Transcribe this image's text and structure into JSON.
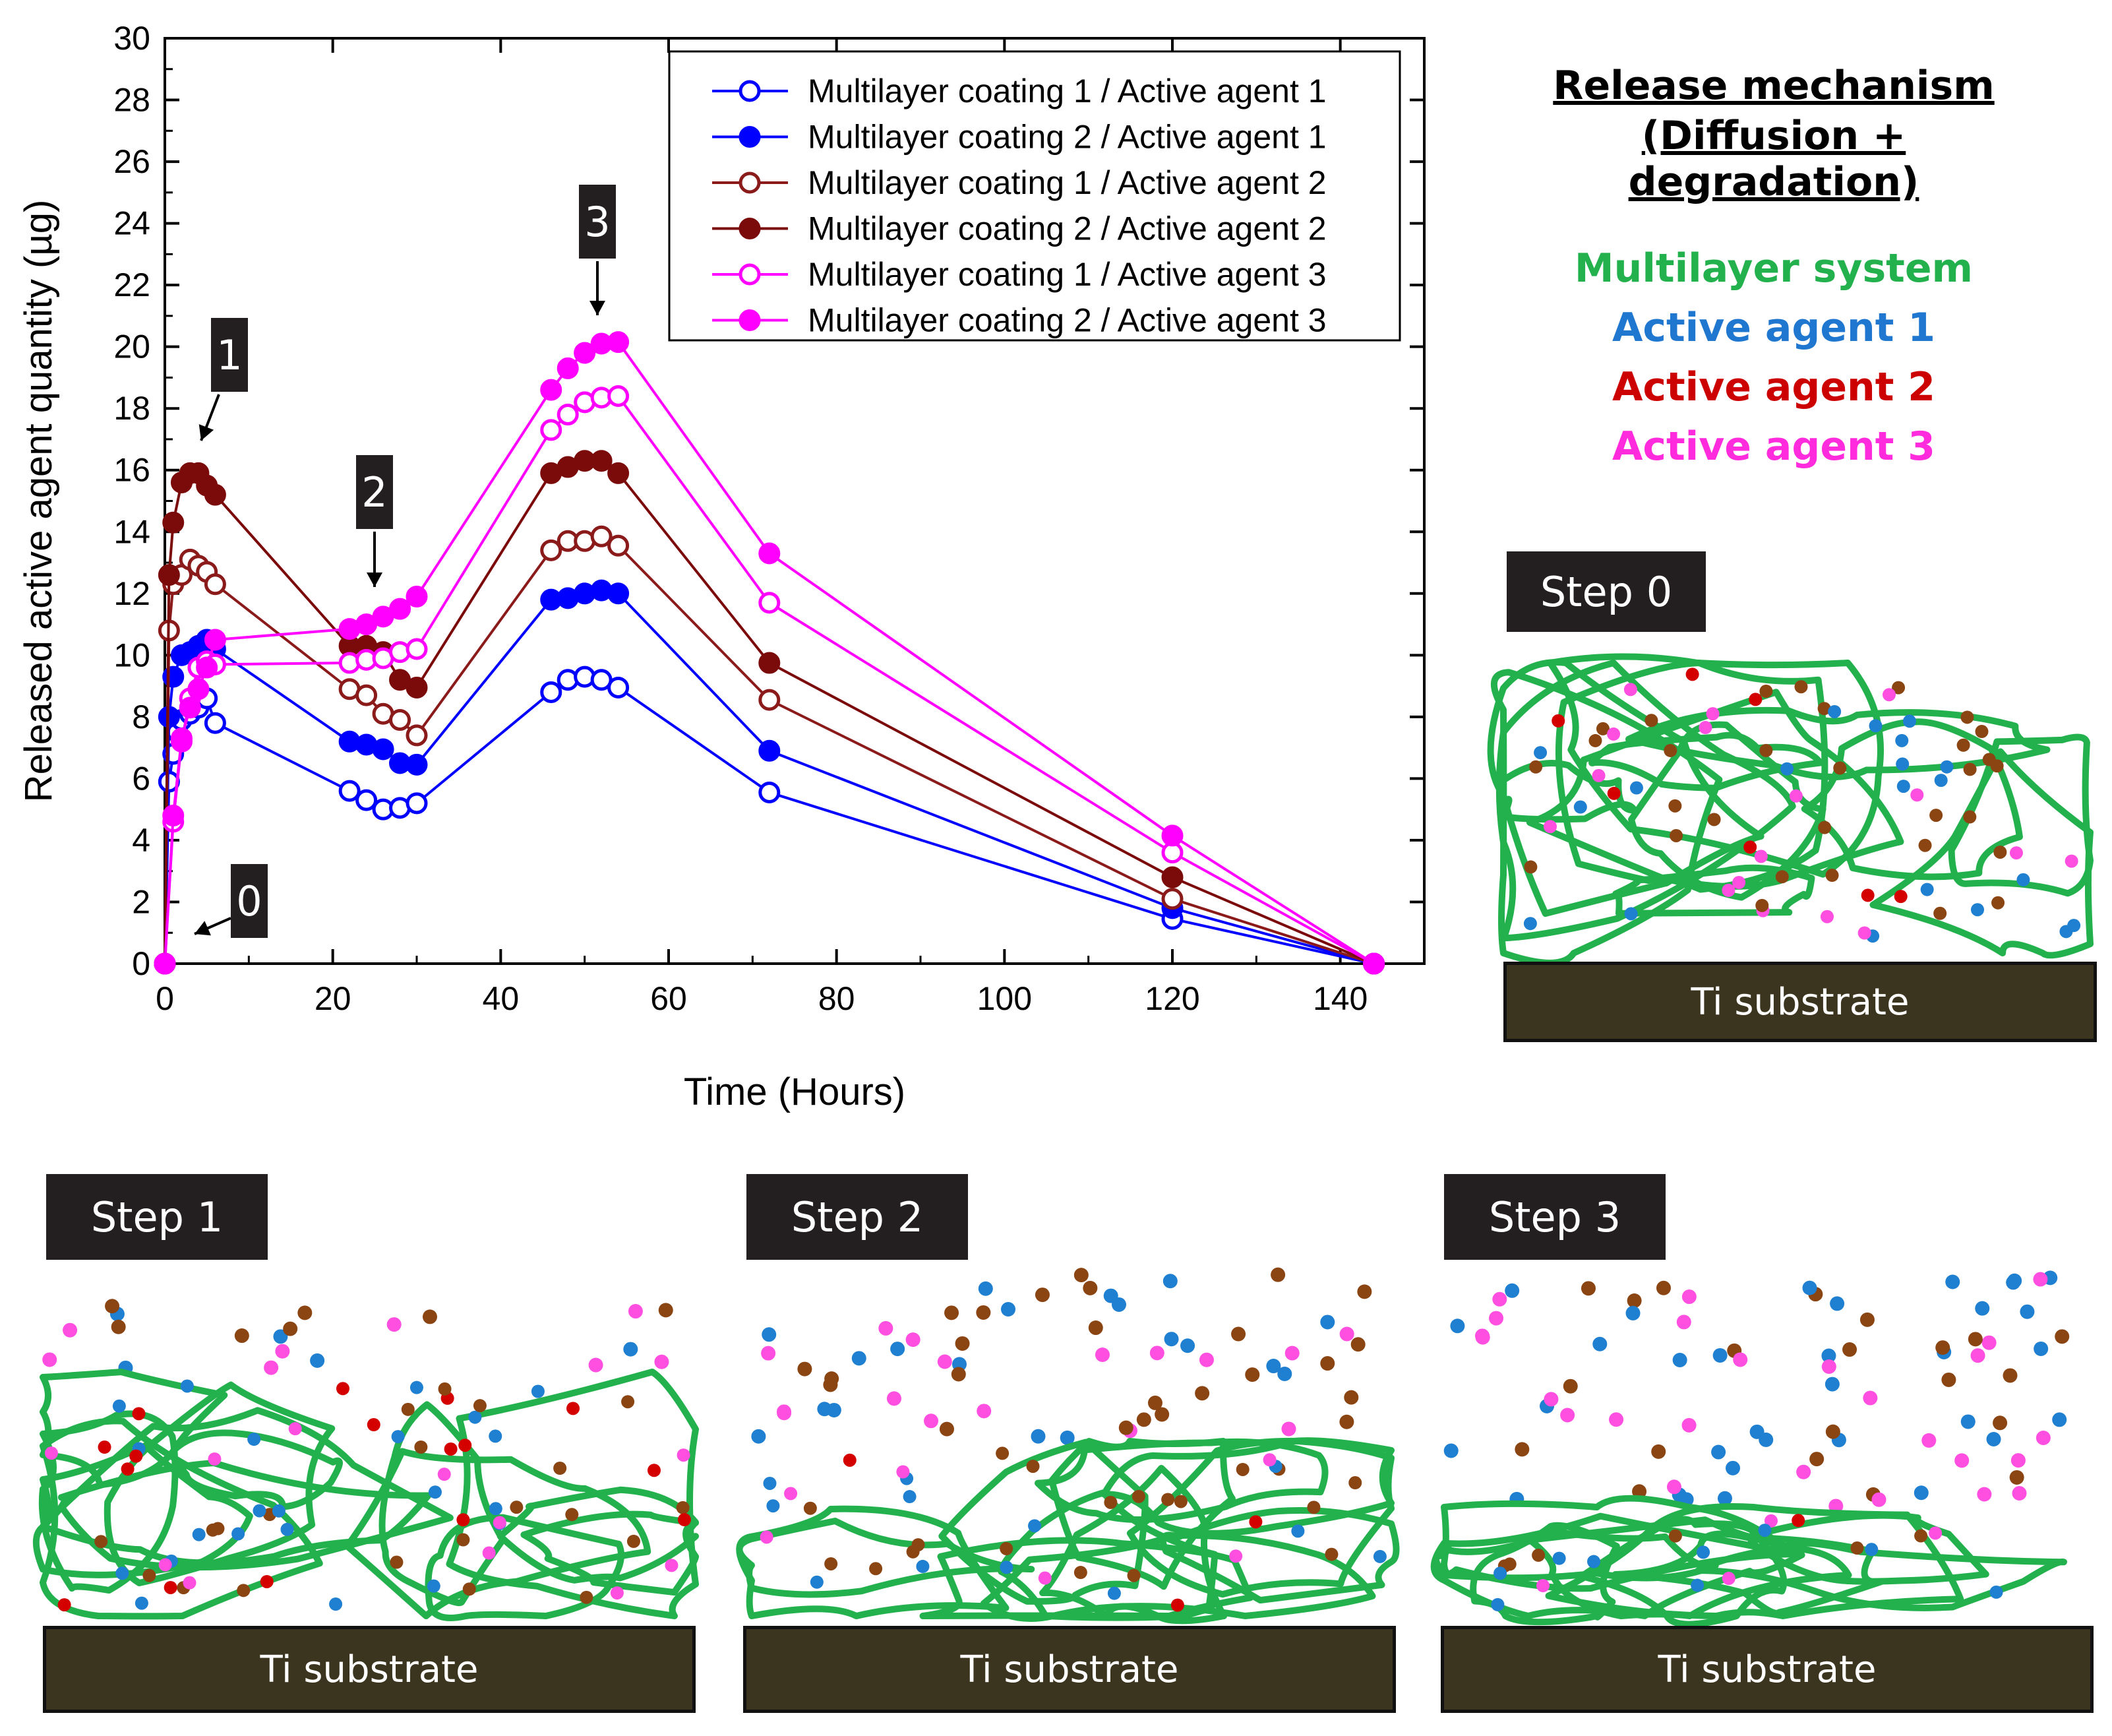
{
  "chart_data": {
    "type": "line",
    "title": "",
    "xlabel": "Time (Hours)",
    "ylabel": "Released active agent quantity (µg)",
    "xlim": [
      0,
      150
    ],
    "ylim": [
      0,
      30
    ],
    "xticks": [
      0,
      20,
      40,
      60,
      80,
      100,
      120,
      140
    ],
    "yticks": [
      0,
      2,
      4,
      6,
      8,
      10,
      12,
      14,
      16,
      18,
      20,
      22,
      24,
      26,
      28,
      30
    ],
    "legend_position": "top-right",
    "series": [
      {
        "name": "Multilayer coating 1 / Active agent 1",
        "color": "#0000ff",
        "marker": "open",
        "x": [
          0,
          0.5,
          1,
          1.5,
          2,
          3,
          4,
          5,
          6,
          22,
          24,
          26,
          28,
          30,
          46,
          48,
          50,
          52,
          54,
          72,
          120,
          144
        ],
        "y": [
          0,
          5.9,
          6.8,
          7.5,
          7.9,
          8.1,
          8.3,
          8.6,
          7.8,
          5.6,
          5.3,
          5.0,
          5.05,
          5.2,
          8.8,
          9.2,
          9.3,
          9.2,
          8.95,
          5.55,
          1.45,
          0
        ]
      },
      {
        "name": "Multilayer coating 2 / Active agent 1",
        "color": "#0000ff",
        "marker": "filled",
        "x": [
          0,
          0.5,
          1,
          2,
          3,
          4,
          5,
          6,
          22,
          24,
          26,
          28,
          30,
          46,
          48,
          50,
          52,
          54,
          72,
          120,
          144
        ],
        "y": [
          0,
          8.0,
          9.3,
          10.0,
          10.1,
          10.3,
          10.5,
          10.2,
          7.2,
          7.1,
          6.95,
          6.5,
          6.45,
          11.8,
          11.85,
          12.0,
          12.1,
          12.0,
          6.9,
          1.8,
          0
        ]
      },
      {
        "name": "Multilayer coating 1 / Active agent 2",
        "color": "#8b1a1a",
        "marker": "open",
        "x": [
          0,
          0.5,
          1,
          2,
          3,
          4,
          5,
          6,
          22,
          24,
          26,
          28,
          30,
          46,
          48,
          50,
          52,
          54,
          72,
          120,
          144
        ],
        "y": [
          0,
          10.8,
          12.3,
          12.6,
          13.1,
          12.9,
          12.7,
          12.3,
          8.9,
          8.7,
          8.1,
          7.9,
          7.4,
          13.4,
          13.7,
          13.7,
          13.85,
          13.55,
          8.55,
          2.1,
          0
        ]
      },
      {
        "name": "Multilayer coating 2 / Active agent 2",
        "color": "#7b0a0a",
        "marker": "filled",
        "x": [
          0,
          0.5,
          1,
          2,
          3,
          4,
          5,
          6,
          22,
          24,
          26,
          28,
          30,
          46,
          48,
          50,
          52,
          54,
          72,
          120,
          144
        ],
        "y": [
          0,
          12.6,
          14.3,
          15.6,
          15.9,
          15.9,
          15.5,
          15.2,
          10.3,
          10.3,
          10.1,
          9.2,
          8.95,
          15.9,
          16.1,
          16.3,
          16.3,
          15.9,
          9.75,
          2.8,
          0
        ]
      },
      {
        "name": "Multilayer coating 1 / Active agent 3",
        "color": "#ff00ff",
        "marker": "open",
        "x": [
          0,
          1,
          2,
          3,
          4,
          5,
          6,
          22,
          24,
          26,
          28,
          30,
          46,
          48,
          50,
          52,
          54,
          72,
          120,
          144
        ],
        "y": [
          0,
          4.6,
          7.2,
          8.6,
          9.6,
          9.8,
          9.7,
          9.75,
          9.85,
          9.9,
          10.1,
          10.2,
          17.3,
          17.8,
          18.2,
          18.35,
          18.4,
          11.7,
          3.6,
          0
        ]
      },
      {
        "name": "Multilayer coating 2 / Active agent 3",
        "color": "#ff00ff",
        "marker": "filled",
        "x": [
          0,
          1,
          2,
          3,
          4,
          5,
          6,
          22,
          24,
          26,
          28,
          30,
          46,
          48,
          50,
          52,
          54,
          72,
          120,
          144
        ],
        "y": [
          0,
          4.8,
          7.3,
          8.3,
          8.9,
          9.6,
          10.5,
          10.85,
          11.0,
          11.25,
          11.5,
          11.9,
          18.6,
          19.3,
          19.8,
          20.1,
          20.15,
          13.3,
          4.15,
          0
        ]
      }
    ],
    "annotations": [
      {
        "label": "0",
        "x": 2,
        "y": 0.8
      },
      {
        "label": "1",
        "x": 5,
        "y": 16.6
      },
      {
        "label": "2",
        "x": 25,
        "y": 12.2
      },
      {
        "label": "3",
        "x": 51,
        "y": 20.7
      }
    ]
  },
  "mechanism": {
    "title_line1": "Release mechanism",
    "title_line2": "(Diffusion + degradation)",
    "legend": [
      {
        "label": "Multilayer system",
        "color": "#22b14c"
      },
      {
        "label": "Active agent 1",
        "color": "#1f77d0"
      },
      {
        "label": "Active agent 2",
        "color": "#cc0000"
      },
      {
        "label": "Active agent 3",
        "color": "#ff2bdc"
      }
    ]
  },
  "steps": [
    {
      "label": "Step 0",
      "substrate": "Ti substrate"
    },
    {
      "label": "Step 1",
      "substrate": "Ti substrate"
    },
    {
      "label": "Step 2",
      "substrate": "Ti substrate"
    },
    {
      "label": "Step 3",
      "substrate": "Ti substrate"
    }
  ],
  "particle_colors": {
    "agent1": "#1f7fd0",
    "agent2": "#d40000",
    "agent3": "#ff4fe0",
    "brown": "#8b4513"
  }
}
